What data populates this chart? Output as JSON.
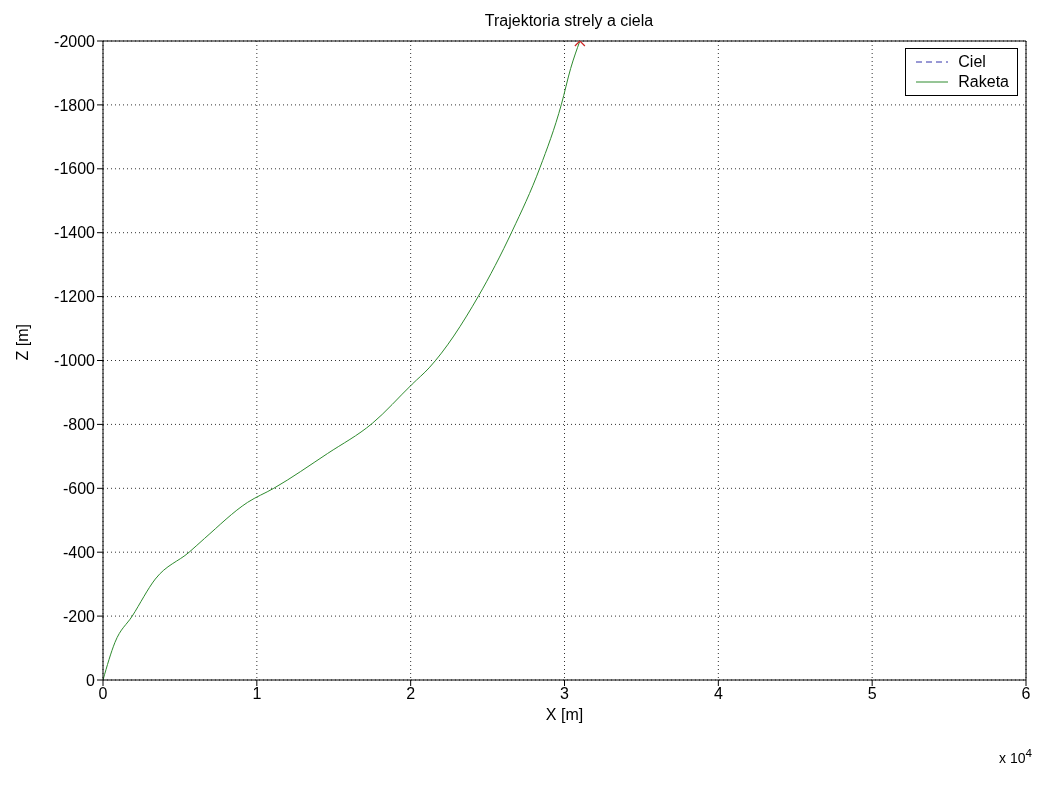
{
  "chart_data": {
    "type": "line",
    "title": "Trajektoria strely a ciela",
    "xlabel": "X [m]",
    "ylabel": "Z [m]",
    "annotations": [
      "x 10$^{4}$"
    ],
    "xlim": [
      0,
      6
    ],
    "xticks": [
      0,
      1,
      2,
      3,
      4,
      5,
      6
    ],
    "ylim": [
      0,
      -2000
    ],
    "yticks": [
      0,
      -200,
      -400,
      -600,
      -800,
      -1000,
      -1200,
      -1400,
      -1600,
      -1800,
      -2000
    ],
    "grid": true,
    "legend": "top right",
    "series": [
      {
        "name": "Ciel",
        "color": "#3333aa",
        "line_style": "dashed"
      },
      {
        "name": "Raketa",
        "color": "#2e8b2e",
        "line_style": "solid",
        "marker": "none",
        "x": [
          0,
          0.078,
          0.19,
          0.34,
          0.56,
          0.66,
          0.94,
          1.11,
          1.46,
          1.75,
          2.01,
          2.12,
          2.44,
          2.66,
          2.84,
          2.98,
          3.04,
          3.1
        ],
        "values": [
          0,
          -118,
          -200,
          -316,
          -400,
          -443,
          -556,
          -600,
          -709,
          -803,
          -926,
          -977,
          -1201,
          -1405,
          -1603,
          -1802,
          -1914,
          -2000
        ]
      },
      {
        "type": "scatter",
        "color": "#cc2222",
        "marker": "cross",
        "x": [
          3.1
        ],
        "values": [
          -2000
        ]
      }
    ]
  }
}
